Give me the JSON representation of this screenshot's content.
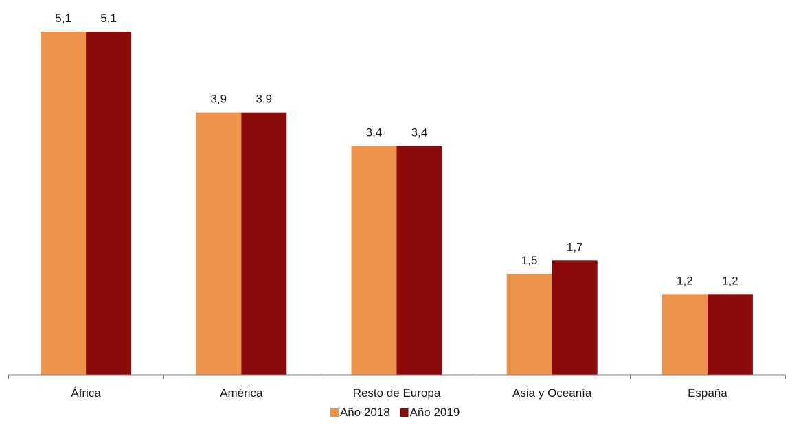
{
  "chart_data": {
    "type": "bar",
    "categories": [
      "África",
      "América",
      "Resto de Europa",
      "Asia y Oceanía",
      "España"
    ],
    "series": [
      {
        "name": "Año 2018",
        "values": [
          5.1,
          3.9,
          3.4,
          1.5,
          1.2
        ],
        "labels": [
          "5,1",
          "3,9",
          "3,4",
          "1,5",
          "1,2"
        ],
        "color": "#ED944A"
      },
      {
        "name": "Año 2019",
        "values": [
          5.1,
          3.9,
          3.4,
          1.7,
          1.2
        ],
        "labels": [
          "5,1",
          "3,9",
          "3,4",
          "1,7",
          "1,2"
        ],
        "color": "#8B0A0A"
      }
    ],
    "ylim": [
      0,
      5.1
    ],
    "grid": false,
    "legend_position": "bottom",
    "axis_color": "#808080"
  }
}
